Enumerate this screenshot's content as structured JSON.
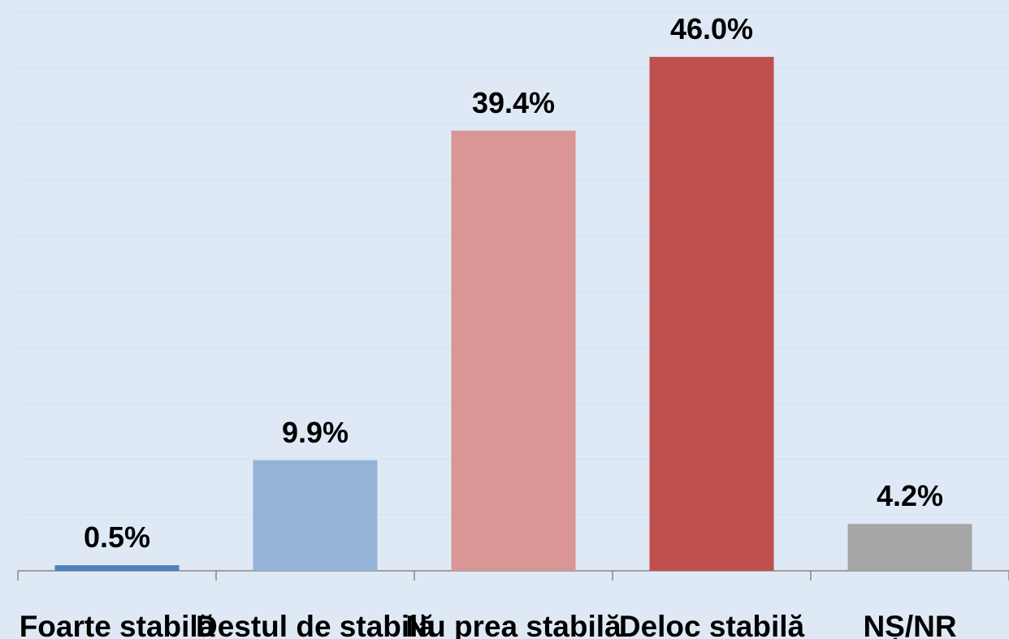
{
  "chart_data": {
    "type": "bar",
    "categories": [
      "Foarte stabilă",
      "Destul de stabilă",
      "Nu prea stabilă",
      "Deloc stabilă",
      "NȘ/NR"
    ],
    "values": [
      0.5,
      9.9,
      39.4,
      46.0,
      4.2
    ],
    "value_labels": [
      "0.5%",
      "9.9%",
      "39.4%",
      "46.0%",
      "4.2%"
    ],
    "colors": [
      "#4f81bd",
      "#95b3d7",
      "#d99694",
      "#c0504d",
      "#a6a6a6"
    ],
    "ylim": [
      0,
      50
    ],
    "yticks": [
      0,
      5,
      10,
      15,
      20,
      25,
      30,
      35,
      40,
      45,
      50
    ],
    "grid": true
  }
}
